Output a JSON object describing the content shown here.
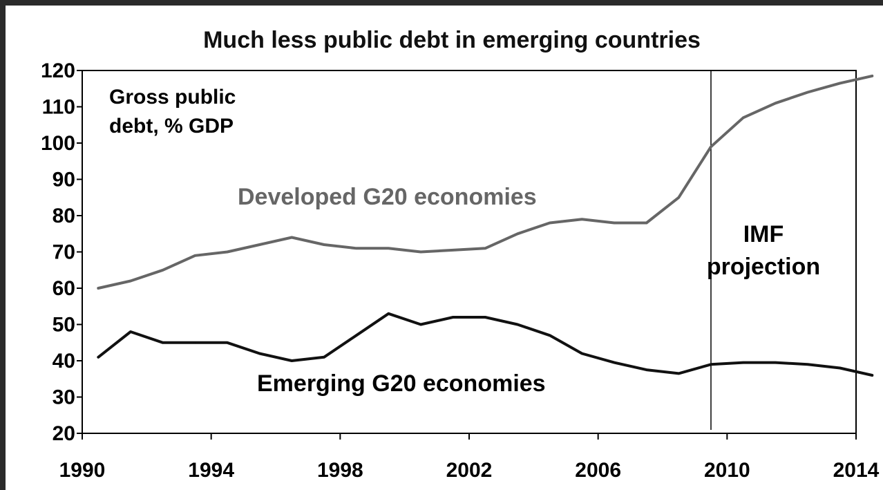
{
  "chart_data": {
    "type": "line",
    "title": "Much less public debt in emerging countries",
    "xlabel": "",
    "ylabel": "",
    "xlim": [
      1990,
      2014
    ],
    "ylim": [
      20,
      120
    ],
    "x_ticks": [
      "1990",
      "1994",
      "1998",
      "2002",
      "2006",
      "2010",
      "2014"
    ],
    "y_ticks": [
      "20",
      "30",
      "40",
      "50",
      "60",
      "70",
      "80",
      "90",
      "100",
      "110",
      "120"
    ],
    "grid": false,
    "annotations": {
      "unit_line1": "Gross public",
      "unit_line2": "debt, % GDP",
      "projection_line1": "IMF",
      "projection_line2": "projection",
      "projection_start": 2009.5
    },
    "series": [
      {
        "name": "Developed G20 economies",
        "color": "#666666",
        "x": [
          1990.5,
          1991.5,
          1992.5,
          1993.5,
          1994.5,
          1995.5,
          1996.5,
          1997.5,
          1998.5,
          1999.5,
          2000.5,
          2001.5,
          2002.5,
          2003.5,
          2004.5,
          2005.5,
          2006.5,
          2007.5,
          2008.5,
          2009.5,
          2010.5,
          2011.5,
          2012.5,
          2013.5,
          2014.5
        ],
        "values": [
          60,
          62,
          65,
          69,
          70,
          72,
          74,
          72,
          71,
          71,
          70,
          70.5,
          71,
          75,
          78,
          79,
          78,
          78,
          85,
          99,
          107,
          111,
          114,
          116.5,
          118.5
        ]
      },
      {
        "name": "Emerging G20 economies",
        "color": "#111111",
        "x": [
          1990.5,
          1991.5,
          1992.5,
          1993.5,
          1994.5,
          1995.5,
          1996.5,
          1997.5,
          1998.5,
          1999.5,
          2000.5,
          2001.5,
          2002.5,
          2003.5,
          2004.5,
          2005.5,
          2006.5,
          2007.5,
          2008.5,
          2009.5,
          2010.5,
          2011.5,
          2012.5,
          2013.5,
          2014.5
        ],
        "values": [
          41,
          48,
          45,
          45,
          45,
          42,
          40,
          41,
          47,
          53,
          50,
          52,
          52,
          50,
          47,
          42,
          39.5,
          37.5,
          36.5,
          39,
          39.5,
          39.5,
          39,
          38,
          36
        ]
      }
    ]
  }
}
